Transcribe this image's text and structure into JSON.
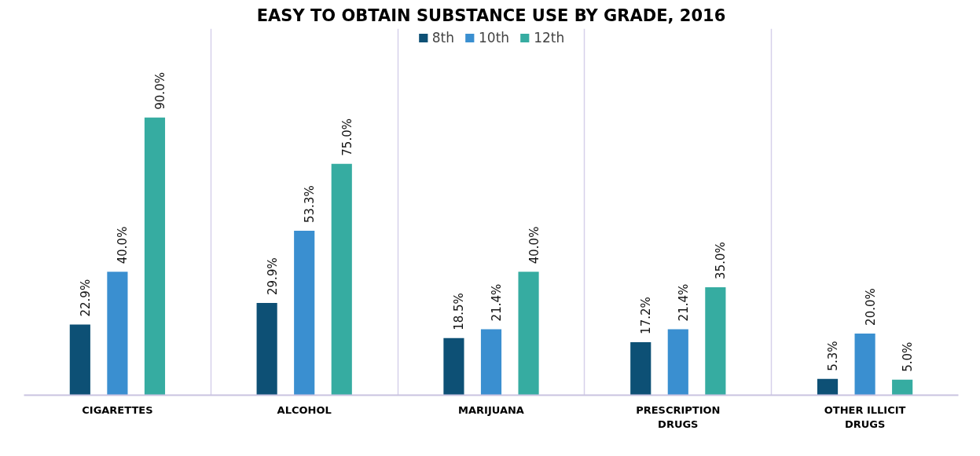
{
  "chart_data": {
    "type": "bar",
    "title": "EASY TO OBTAIN SUBSTANCE USE BY GRADE, 2016",
    "categories": [
      "CIGARETTES",
      "ALCOHOL",
      "MARIJUANA",
      "PRESCRIPTION DRUGS",
      "OTHER ILLICIT DRUGS"
    ],
    "series": [
      {
        "name": "8th",
        "color": "#0d5075",
        "values": [
          22.9,
          29.9,
          18.5,
          17.2,
          5.3
        ],
        "value_labels": [
          "22.9%",
          "29.9%",
          "18.5%",
          "17.2%",
          "5.3%"
        ]
      },
      {
        "name": "10th",
        "color": "#3a8fd0",
        "values": [
          40.0,
          53.3,
          21.4,
          21.4,
          20.0
        ],
        "value_labels": [
          "40.0%",
          "53.3%",
          "21.4%",
          "21.4%",
          "20.0%"
        ]
      },
      {
        "name": "12th",
        "color": "#36aca1",
        "values": [
          90.0,
          75.0,
          40.0,
          35.0,
          5.0
        ],
        "value_labels": [
          "90.0%",
          "75.0%",
          "40.0%",
          "35.0%",
          "5.0%"
        ]
      }
    ],
    "legend": "top",
    "grid": "x"
  }
}
